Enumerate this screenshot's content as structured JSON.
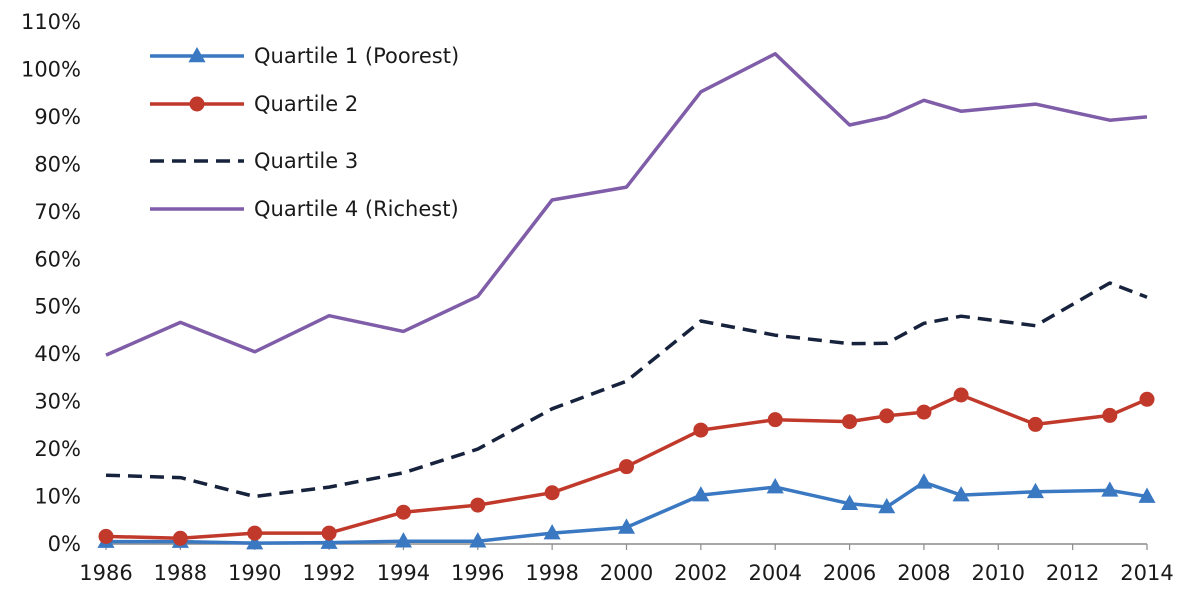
{
  "chart_data": {
    "type": "line",
    "x": [
      1986,
      1988,
      1990,
      1992,
      1994,
      1996,
      1998,
      2000,
      2002,
      2004,
      2006,
      2007,
      2008,
      2009,
      2011,
      2013,
      2014
    ],
    "x_ticks": [
      "1986",
      "1988",
      "1990",
      "1992",
      "1994",
      "1996",
      "1998",
      "2000",
      "2002",
      "2004",
      "2006",
      "2008",
      "2010",
      "2012",
      "2014"
    ],
    "y_ticks": [
      "0%",
      "10%",
      "20%",
      "30%",
      "40%",
      "50%",
      "60%",
      "70%",
      "80%",
      "90%",
      "100%",
      "110%"
    ],
    "xlim": [
      1986,
      2014
    ],
    "ylim": [
      0,
      110
    ],
    "grid": false,
    "legend_position": "top-left",
    "series": [
      {
        "name": "Quartile 1 (Poorest)",
        "color": "#3a78c2",
        "style": "solid",
        "marker": "triangle",
        "values": [
          0.5,
          0.5,
          0.2,
          0.3,
          0.6,
          0.6,
          2.3,
          3.5,
          10.3,
          12.0,
          8.5,
          7.8,
          13.0,
          10.3,
          11.0,
          11.3,
          10.0
        ]
      },
      {
        "name": "Quartile 2",
        "color": "#c0392b",
        "style": "solid",
        "marker": "circle",
        "values": [
          1.6,
          1.2,
          2.3,
          2.3,
          6.7,
          8.2,
          10.8,
          16.3,
          24.0,
          26.2,
          25.8,
          27.0,
          27.8,
          31.4,
          25.2,
          27.1,
          30.5
        ]
      },
      {
        "name": "Quartile 3",
        "color": "#17233d",
        "style": "dashed",
        "marker": "none",
        "values": [
          14.5,
          14.0,
          10.0,
          12.0,
          15.0,
          20.0,
          28.5,
          34.3,
          47.0,
          44.0,
          42.2,
          42.3,
          46.5,
          48.0,
          46.0,
          55.0,
          52.0
        ]
      },
      {
        "name": "Quartile 4 (Richest)",
        "color": "#7f5da8",
        "style": "solid",
        "marker": "none",
        "values": [
          39.8,
          46.7,
          40.5,
          48.1,
          44.8,
          52.2,
          72.5,
          75.2,
          95.3,
          103.3,
          88.3,
          90.0,
          93.5,
          91.2,
          92.7,
          89.3,
          90.0
        ]
      }
    ]
  }
}
